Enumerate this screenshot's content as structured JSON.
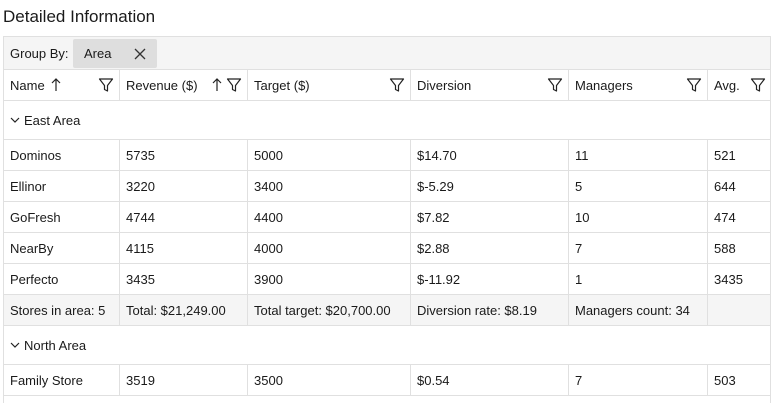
{
  "title": "Detailed Information",
  "group_by": {
    "label": "Group By:",
    "chip": "Area"
  },
  "columns": [
    {
      "label": "Name",
      "sort": "asc",
      "filter": true
    },
    {
      "label": "Revenue ($)",
      "sort": "asc",
      "filter": true
    },
    {
      "label": "Target ($)",
      "sort": "",
      "filter": true
    },
    {
      "label": "Diversion",
      "sort": "",
      "filter": true
    },
    {
      "label": "Managers",
      "sort": "",
      "filter": true
    },
    {
      "label": "Avg.",
      "sort": "",
      "filter": true
    }
  ],
  "groups": [
    {
      "label": "East Area",
      "expanded": true,
      "rows": [
        [
          "Dominos",
          "5735",
          "5000",
          "$14.70",
          "11",
          "521"
        ],
        [
          "Ellinor",
          "3220",
          "3400",
          "$-5.29",
          "5",
          "644"
        ],
        [
          "GoFresh",
          "4744",
          "4400",
          "$7.82",
          "10",
          "474"
        ],
        [
          "NearBy",
          "4115",
          "4000",
          "$2.88",
          "7",
          "588"
        ],
        [
          "Perfecto",
          "3435",
          "3900",
          "$-11.92",
          "1",
          "3435"
        ]
      ],
      "summary": [
        "Stores in area: 5",
        "Total: $21,249.00",
        "Total target: $20,700.00",
        "Diversion rate: $8.19",
        "Managers count: 34",
        ""
      ]
    },
    {
      "label": "North Area",
      "expanded": true,
      "rows": [
        [
          "Family Store",
          "3519",
          "3500",
          "$0.54",
          "7",
          "503"
        ]
      ]
    }
  ]
}
